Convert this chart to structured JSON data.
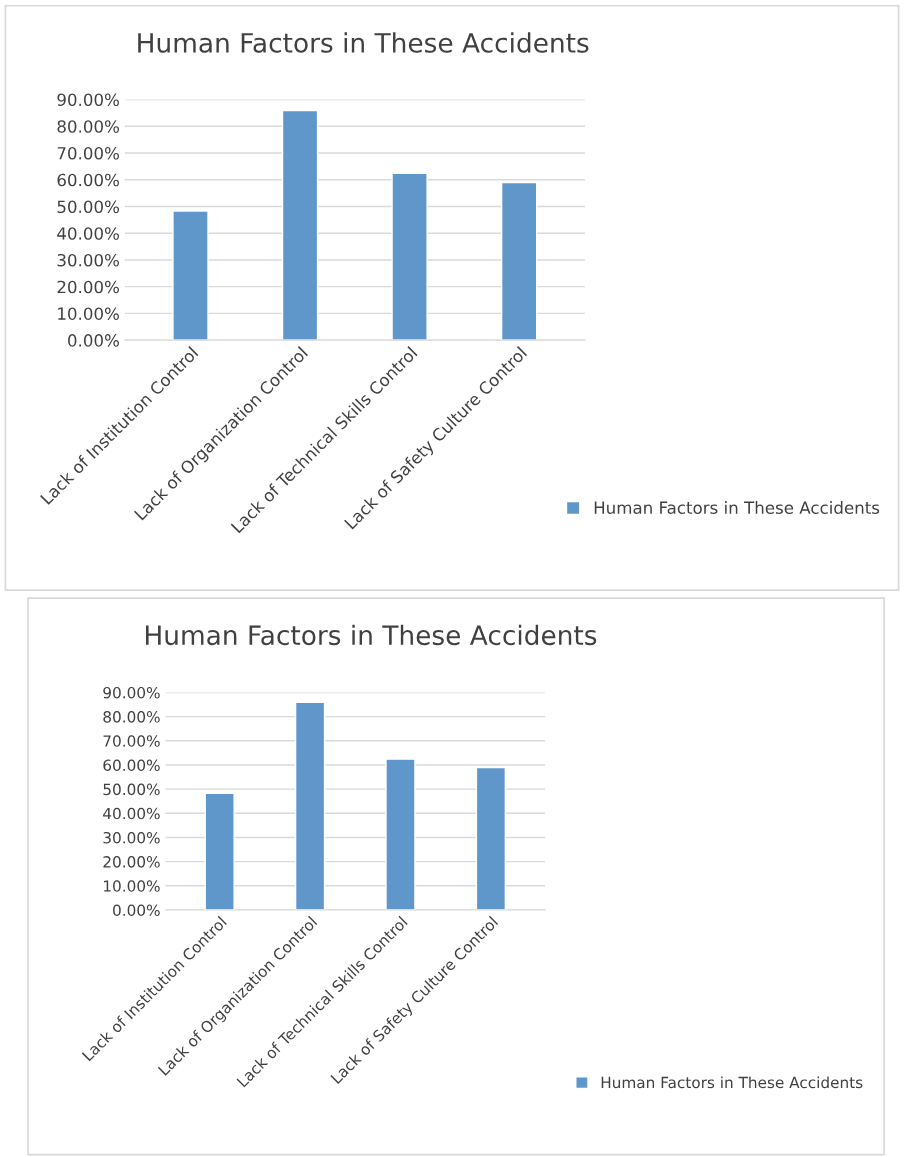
{
  "chart_data": [
    {
      "type": "bar",
      "title": "Human Factors in These Accidents",
      "categories": [
        "Lack of Institution Control",
        "Lack of Organization Control",
        "Lack of Technical Skills Control",
        "Lack of Safety Culture Control"
      ],
      "series": [
        {
          "name": "Human Factors in These Accidents",
          "color": "#6097cb",
          "values": [
            48.3,
            85.9,
            62.4,
            58.9
          ]
        }
      ],
      "ylim": [
        0,
        90
      ],
      "yticks": [
        {
          "value": 0,
          "label": "0.00%"
        },
        {
          "value": 10,
          "label": "10.00%"
        },
        {
          "value": 20,
          "label": "20.00%"
        },
        {
          "value": 30,
          "label": "30.00%"
        },
        {
          "value": 40,
          "label": "40.00%"
        },
        {
          "value": 50,
          "label": "50.00%"
        },
        {
          "value": 60,
          "label": "60.00%"
        },
        {
          "value": 70,
          "label": "70.00%"
        },
        {
          "value": 80,
          "label": "80.00%"
        },
        {
          "value": 90,
          "label": "90.00%"
        }
      ],
      "grid": "y",
      "legend": "bottom right"
    },
    {
      "type": "bar",
      "title": "Human Factors in These Accidents",
      "categories": [
        "Lack of Institution Control",
        "Lack of Organization Control",
        "Lack of Technical Skills Control",
        "Lack of Safety Culture Control"
      ],
      "series": [
        {
          "name": "Human Factors in These Accidents",
          "color": "#6097cb",
          "values": [
            48.3,
            85.9,
            62.4,
            58.9
          ]
        }
      ],
      "ylim": [
        0,
        90
      ],
      "yticks": [
        {
          "value": 0,
          "label": "0.00%"
        },
        {
          "value": 10,
          "label": "10.00%"
        },
        {
          "value": 20,
          "label": "20.00%"
        },
        {
          "value": 30,
          "label": "30.00%"
        },
        {
          "value": 40,
          "label": "40.00%"
        },
        {
          "value": 50,
          "label": "50.00%"
        },
        {
          "value": 60,
          "label": "60.00%"
        },
        {
          "value": 70,
          "label": "70.00%"
        },
        {
          "value": 80,
          "label": "80.00%"
        },
        {
          "value": 90,
          "label": "90.00%"
        }
      ],
      "grid": "y",
      "legend": "bottom right"
    }
  ]
}
